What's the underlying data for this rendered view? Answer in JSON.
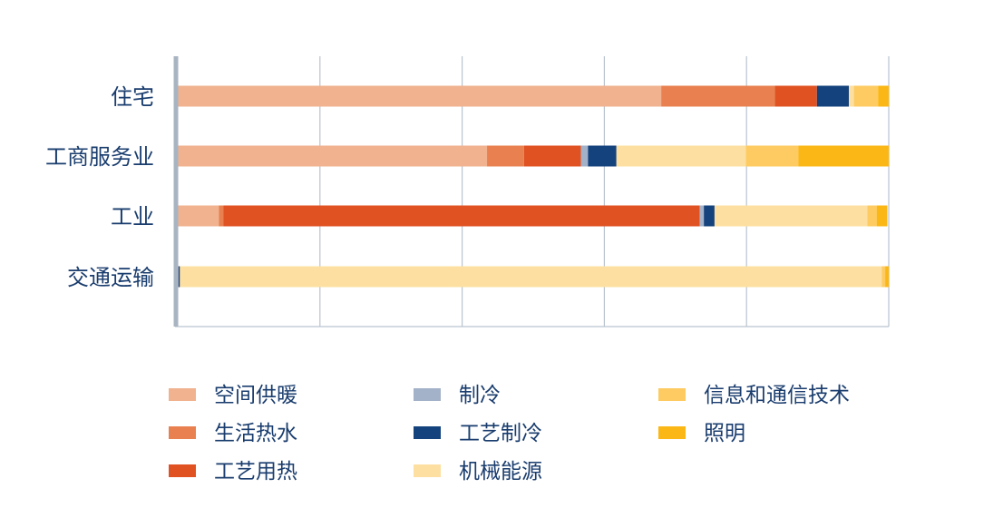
{
  "chart_data": {
    "type": "bar",
    "orientation": "horizontal",
    "stacked": true,
    "categories": [
      "住宅",
      "工商服务业",
      "工业",
      "交通运输"
    ],
    "xlim": [
      0,
      100
    ],
    "grid": true,
    "legend_position": "bottom",
    "series": [
      {
        "name": "空间供暖",
        "color": "#f0b28f",
        "values": [
          68.0,
          43.5,
          5.8,
          0.1
        ]
      },
      {
        "name": "生活热水",
        "color": "#e8804f",
        "values": [
          16.0,
          5.2,
          0.6,
          0.0
        ]
      },
      {
        "name": "工艺用热",
        "color": "#e05222",
        "values": [
          5.9,
          8.0,
          67.0,
          0.0
        ]
      },
      {
        "name": "制冷",
        "color": "#a3b2c8",
        "values": [
          0.0,
          1.0,
          0.6,
          0.0
        ]
      },
      {
        "name": "工艺制冷",
        "color": "#13427c",
        "values": [
          4.5,
          4.0,
          1.5,
          0.2
        ]
      },
      {
        "name": "机械能源",
        "color": "#fde0a1",
        "values": [
          0.7,
          18.2,
          21.5,
          98.7
        ]
      },
      {
        "name": "信息和通信技术",
        "color": "#fdcb62",
        "values": [
          3.4,
          7.4,
          1.3,
          0.5
        ]
      },
      {
        "name": "照明",
        "color": "#fbb715",
        "values": [
          1.5,
          12.7,
          1.5,
          0.5
        ]
      }
    ]
  }
}
